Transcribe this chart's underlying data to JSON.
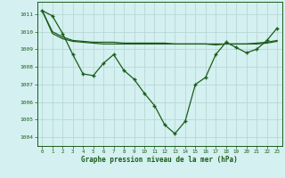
{
  "title": "Graphe pression niveau de la mer (hPa)",
  "background_color": "#d4f0f0",
  "grid_color": "#b8d8d8",
  "line_color": "#1a5c1a",
  "xlim": [
    -0.5,
    23.5
  ],
  "ylim": [
    1003.5,
    1011.7
  ],
  "yticks": [
    1004,
    1005,
    1006,
    1007,
    1008,
    1009,
    1010,
    1011
  ],
  "xticks": [
    0,
    1,
    2,
    3,
    4,
    5,
    6,
    7,
    8,
    9,
    10,
    11,
    12,
    13,
    14,
    15,
    16,
    17,
    18,
    19,
    20,
    21,
    22,
    23
  ],
  "series_main": [
    1011.2,
    1010.9,
    1009.9,
    1008.7,
    1007.6,
    1007.5,
    1008.2,
    1008.7,
    1007.8,
    1007.3,
    1006.5,
    1005.8,
    1004.7,
    1004.2,
    1004.9,
    1007.0,
    1007.4,
    1008.7,
    1009.4,
    1009.1,
    1008.8,
    1009.0,
    1009.5,
    1010.2
  ],
  "series_smooth1": [
    1011.2,
    1010.0,
    1009.7,
    1009.5,
    1009.45,
    1009.4,
    1009.4,
    1009.4,
    1009.35,
    1009.35,
    1009.35,
    1009.35,
    1009.35,
    1009.3,
    1009.3,
    1009.3,
    1009.3,
    1009.25,
    1009.3,
    1009.3,
    1009.3,
    1009.35,
    1009.4,
    1009.5
  ],
  "series_smooth2": [
    1011.2,
    1009.9,
    1009.6,
    1009.45,
    1009.4,
    1009.35,
    1009.3,
    1009.3,
    1009.3,
    1009.3,
    1009.3,
    1009.3,
    1009.3,
    1009.3,
    1009.3,
    1009.3,
    1009.3,
    1009.3,
    1009.3,
    1009.3,
    1009.3,
    1009.3,
    1009.35,
    1009.45
  ]
}
